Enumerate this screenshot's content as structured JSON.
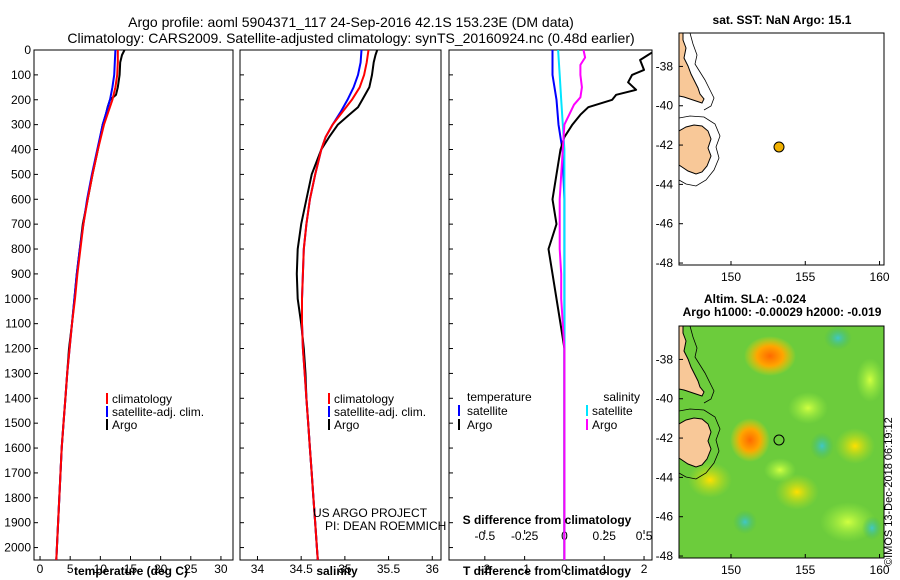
{
  "header": {
    "line1": "Argo profile: aoml 5904371_117 24-Sep-2016 42.1S 153.23E (DM data)",
    "line2": "Climatology: CARS2009. Satellite-adjusted climatology: synTS_20160924.nc (0.48d earlier)"
  },
  "credit": "©IMOS 13-Dec-2018 06:19:12",
  "colors": {
    "climatology": "#ff0000",
    "satellite": "#0000ff",
    "argo": "#000000",
    "t_satellite": "#0000ff",
    "s_satellite": "#00e5ff",
    "s_argo": "#ff00ff",
    "land": "#f8c898",
    "sea": "#ffffff"
  },
  "chart_data": [
    {
      "type": "line",
      "panel": "temperature",
      "xlabel": "temperature (deg C)",
      "ylabel": "",
      "xlim": [
        -1,
        32
      ],
      "ylim": [
        2050,
        0
      ],
      "xticks": [
        0,
        5,
        10,
        15,
        20,
        25,
        30
      ],
      "yticks": [
        0,
        100,
        200,
        300,
        400,
        500,
        600,
        700,
        800,
        900,
        1000,
        1100,
        1200,
        1300,
        1400,
        1500,
        1600,
        1700,
        1800,
        1900,
        2000
      ],
      "legend": [
        "climatology",
        "satellite-adj. clim.",
        "Argo"
      ],
      "legend_placement": "lower-middle",
      "series": [
        {
          "name": "climatology",
          "depth": [
            0,
            50,
            100,
            150,
            200,
            250,
            300,
            400,
            500,
            600,
            700,
            800,
            900,
            1000,
            1100,
            1200,
            1300,
            1400,
            1500,
            1600,
            1700,
            1800,
            1900,
            2000,
            2050
          ],
          "values": [
            12.9,
            12.9,
            12.8,
            12.5,
            12.0,
            11.3,
            10.6,
            9.6,
            8.7,
            7.9,
            7.2,
            6.7,
            6.2,
            5.8,
            5.3,
            4.9,
            4.5,
            4.2,
            3.9,
            3.6,
            3.4,
            3.2,
            3.0,
            2.8,
            2.7
          ]
        },
        {
          "name": "satellite-adj. clim.",
          "depth": [
            0,
            50,
            100,
            150,
            200,
            250,
            300,
            400,
            500,
            600,
            700,
            800,
            900,
            1000,
            1100,
            1200,
            1300,
            1400,
            1500,
            1600,
            1700,
            1800,
            1900,
            2000,
            2050
          ],
          "values": [
            12.5,
            12.4,
            12.3,
            12.0,
            11.6,
            11.0,
            10.4,
            9.5,
            8.6,
            7.8,
            7.2,
            6.6,
            6.1,
            5.7,
            5.3,
            4.9,
            4.5,
            4.2,
            3.9,
            3.6,
            3.4,
            3.2,
            3.0,
            2.8,
            2.7
          ]
        },
        {
          "name": "Argo",
          "depth": [
            0,
            20,
            50,
            100,
            150,
            180,
            200,
            230,
            260,
            300,
            350,
            400,
            500,
            600,
            700,
            800,
            900,
            1000,
            1100,
            1200,
            1300,
            1400,
            1500,
            1600,
            1700,
            1800,
            1900,
            2000,
            2050
          ],
          "values": [
            14.0,
            13.6,
            13.3,
            13.2,
            12.9,
            12.6,
            11.6,
            11.2,
            10.9,
            10.4,
            10.0,
            9.6,
            8.7,
            7.9,
            7.1,
            6.6,
            6.1,
            5.7,
            5.3,
            4.8,
            4.5,
            4.2,
            3.9,
            3.6,
            3.4,
            3.2,
            3.0,
            2.8,
            2.7
          ]
        }
      ]
    },
    {
      "type": "line",
      "panel": "salinity",
      "xlabel": "salinity",
      "ylabel": "",
      "xlim": [
        33.8,
        36.1
      ],
      "ylim": [
        2050,
        0
      ],
      "xticks": [
        34,
        34.5,
        35,
        35.5,
        36
      ],
      "legend": [
        "climatology",
        "satellite-adj. clim.",
        "Argo"
      ],
      "legend_placement": "lower-middle",
      "annotation": [
        "US ARGO PROJECT",
        "PI: DEAN ROEMMICH"
      ],
      "series": [
        {
          "name": "climatology",
          "depth": [
            0,
            50,
            100,
            150,
            200,
            250,
            300,
            350,
            400,
            500,
            600,
            700,
            800,
            900,
            1000,
            1100,
            1200,
            1300,
            1400,
            1500,
            1600,
            1700,
            1800,
            1900,
            2000,
            2050
          ],
          "values": [
            35.27,
            35.25,
            35.22,
            35.17,
            35.08,
            34.97,
            34.86,
            34.78,
            34.73,
            34.66,
            34.6,
            34.56,
            34.53,
            34.52,
            34.51,
            34.51,
            34.52,
            34.54,
            34.56,
            34.58,
            34.6,
            34.62,
            34.64,
            34.66,
            34.68,
            34.69
          ]
        },
        {
          "name": "satellite-adj. clim.",
          "depth": [
            0,
            50,
            100,
            150,
            200,
            250,
            300,
            350,
            400,
            500,
            600,
            700,
            800,
            900,
            1000,
            1100,
            1200,
            1300,
            1400,
            1500,
            1600,
            1700,
            1800,
            1900,
            2000,
            2050
          ],
          "values": [
            35.19,
            35.18,
            35.15,
            35.1,
            35.03,
            34.95,
            34.86,
            34.78,
            34.73,
            34.66,
            34.6,
            34.56,
            34.53,
            34.52,
            34.51,
            34.51,
            34.52,
            34.54,
            34.56,
            34.58,
            34.6,
            34.62,
            34.64,
            34.66,
            34.68,
            34.69
          ]
        },
        {
          "name": "Argo",
          "depth": [
            0,
            20,
            50,
            100,
            150,
            200,
            230,
            260,
            300,
            350,
            400,
            500,
            600,
            700,
            800,
            900,
            1000,
            1100,
            1200,
            1300,
            1400,
            1500,
            1600,
            1700,
            1800,
            1900,
            2000,
            2050
          ],
          "values": [
            35.37,
            35.35,
            35.33,
            35.31,
            35.28,
            35.2,
            35.15,
            35.05,
            34.92,
            34.82,
            34.73,
            34.62,
            34.56,
            34.5,
            34.46,
            34.45,
            34.46,
            34.5,
            34.53,
            34.55,
            34.56,
            34.58,
            34.6,
            34.62,
            34.64,
            34.66,
            34.68,
            34.69
          ]
        }
      ]
    },
    {
      "type": "line",
      "panel": "difference",
      "xlabel": "T difference from climatology",
      "xlabel_top": "S difference from climatology",
      "ylabel": "",
      "xlim": [
        -2.9,
        2.2
      ],
      "ylim": [
        2050,
        0
      ],
      "xticks": [
        -2,
        -1,
        0,
        1,
        2
      ],
      "xticks_top": [
        "-0.5",
        "-0.25",
        "0",
        "0.25",
        "0.5"
      ],
      "legend": {
        "temperature": {
          "title": "temperature",
          "items": [
            "satellite",
            "Argo"
          ]
        },
        "salinity": {
          "title": "salinity",
          "items": [
            "satellite",
            "Argo"
          ]
        }
      },
      "legend_placement": "lower",
      "series": [
        {
          "name": "temperature satellite",
          "depth": [
            0,
            100,
            200,
            300,
            400,
            600,
            800,
            1000,
            1200,
            1400,
            1600,
            1800,
            2000,
            2050
          ],
          "values": [
            -0.3,
            -0.3,
            -0.2,
            -0.15,
            -0.05,
            0.0,
            0.0,
            0.0,
            0.0,
            0.0,
            0.0,
            0.0,
            0.0,
            0.0
          ]
        },
        {
          "name": "temperature Argo",
          "depth": [
            0,
            20,
            40,
            80,
            100,
            130,
            160,
            180,
            200,
            230,
            260,
            300,
            350,
            400,
            500,
            600,
            700,
            800,
            900,
            1000,
            1100,
            1200,
            1300,
            1400,
            1600,
            1800,
            2000,
            2050
          ],
          "values": [
            2.3,
            2.1,
            1.9,
            2.0,
            1.7,
            1.6,
            1.8,
            1.3,
            1.2,
            0.6,
            0.4,
            0.2,
            0.0,
            -0.1,
            -0.2,
            -0.3,
            -0.2,
            -0.4,
            -0.3,
            -0.2,
            -0.1,
            0.0,
            0.0,
            0.0,
            0.0,
            0.0,
            0.0,
            0.0
          ]
        },
        {
          "name": "salinity satellite",
          "depth": [
            0,
            100,
            200,
            300,
            400,
            600,
            800,
            1000,
            1200,
            1400,
            1600,
            1800,
            2000,
            2050
          ],
          "values": [
            -0.04,
            -0.03,
            -0.02,
            -0.01,
            0.0,
            0.0,
            0.0,
            0.0,
            0.0,
            0.0,
            0.0,
            0.0,
            0.0,
            0.0
          ]
        },
        {
          "name": "salinity Argo",
          "depth": [
            0,
            30,
            60,
            100,
            150,
            190,
            220,
            260,
            300,
            400,
            500,
            600,
            700,
            800,
            900,
            1000,
            1100,
            1200,
            1300,
            1400,
            1600,
            1800,
            2000,
            2050
          ],
          "values": [
            0.12,
            0.13,
            0.1,
            0.1,
            0.11,
            0.1,
            0.06,
            0.03,
            0.0,
            -0.01,
            -0.02,
            -0.03,
            -0.03,
            -0.03,
            -0.02,
            -0.02,
            -0.01,
            0.0,
            0.0,
            0.0,
            0.0,
            0.0,
            0.0,
            0.0
          ]
        }
      ]
    },
    {
      "type": "scatter",
      "panel": "map-top",
      "title": "sat. SST: NaN Argo: 15.1",
      "xlim": [
        146.5,
        160.3
      ],
      "ylim": [
        -48.1,
        -36.3
      ],
      "xticks": [
        150,
        155,
        160
      ],
      "yticks": [
        -38,
        -40,
        -42,
        -44,
        -46,
        -48
      ],
      "points": [
        {
          "x": 153.23,
          "y": -42.1
        }
      ]
    },
    {
      "type": "heatmap",
      "panel": "map-bottom",
      "title": "Altim. SLA: -0.024",
      "subtitle": "Argo h1000: -0.00029 h2000: -0.019",
      "xlim": [
        146.5,
        160.3
      ],
      "ylim": [
        -48.1,
        -36.3
      ],
      "xticks": [
        150,
        155,
        160
      ],
      "yticks": [
        -38,
        -40,
        -42,
        -44,
        -46,
        -48
      ],
      "points": [
        {
          "x": 153.23,
          "y": -42.1
        }
      ]
    }
  ]
}
